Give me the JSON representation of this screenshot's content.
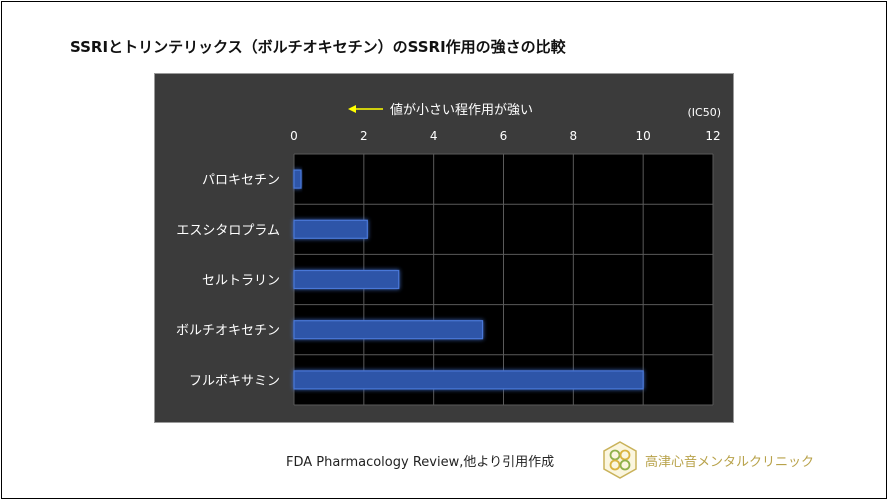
{
  "slide": {
    "title": "SSRIとトリンテリックス（ボルチオキセチン）のSSRI作用の強さの比較",
    "source": "FDA Pharmacology Review,他より引用作成",
    "clinic_name": "高津心音メンタルクリニック"
  },
  "chart_data": {
    "type": "bar",
    "orientation": "horizontal",
    "annotation": "値が小さい程作用が強い",
    "unit_label": "(IC50)",
    "categories": [
      "パロキセチン",
      "エスシタロプラム",
      "セルトラリン",
      "ボルチオキセチン",
      "フルボキサミン"
    ],
    "values": [
      0.2,
      2.1,
      3.0,
      5.4,
      10.0
    ],
    "xlim": [
      0,
      12
    ],
    "x_ticks": [
      0,
      2,
      4,
      6,
      8,
      10,
      12
    ],
    "axis_position": "top",
    "grid": true,
    "colors": {
      "background": "#3b3b3b",
      "plot_background": "#000000",
      "bar": "#2f55a8",
      "bar_edge": "#4a78d8",
      "grid": "#5a5a5a",
      "text": "#ffffff",
      "arrow": "#ffff00"
    }
  }
}
